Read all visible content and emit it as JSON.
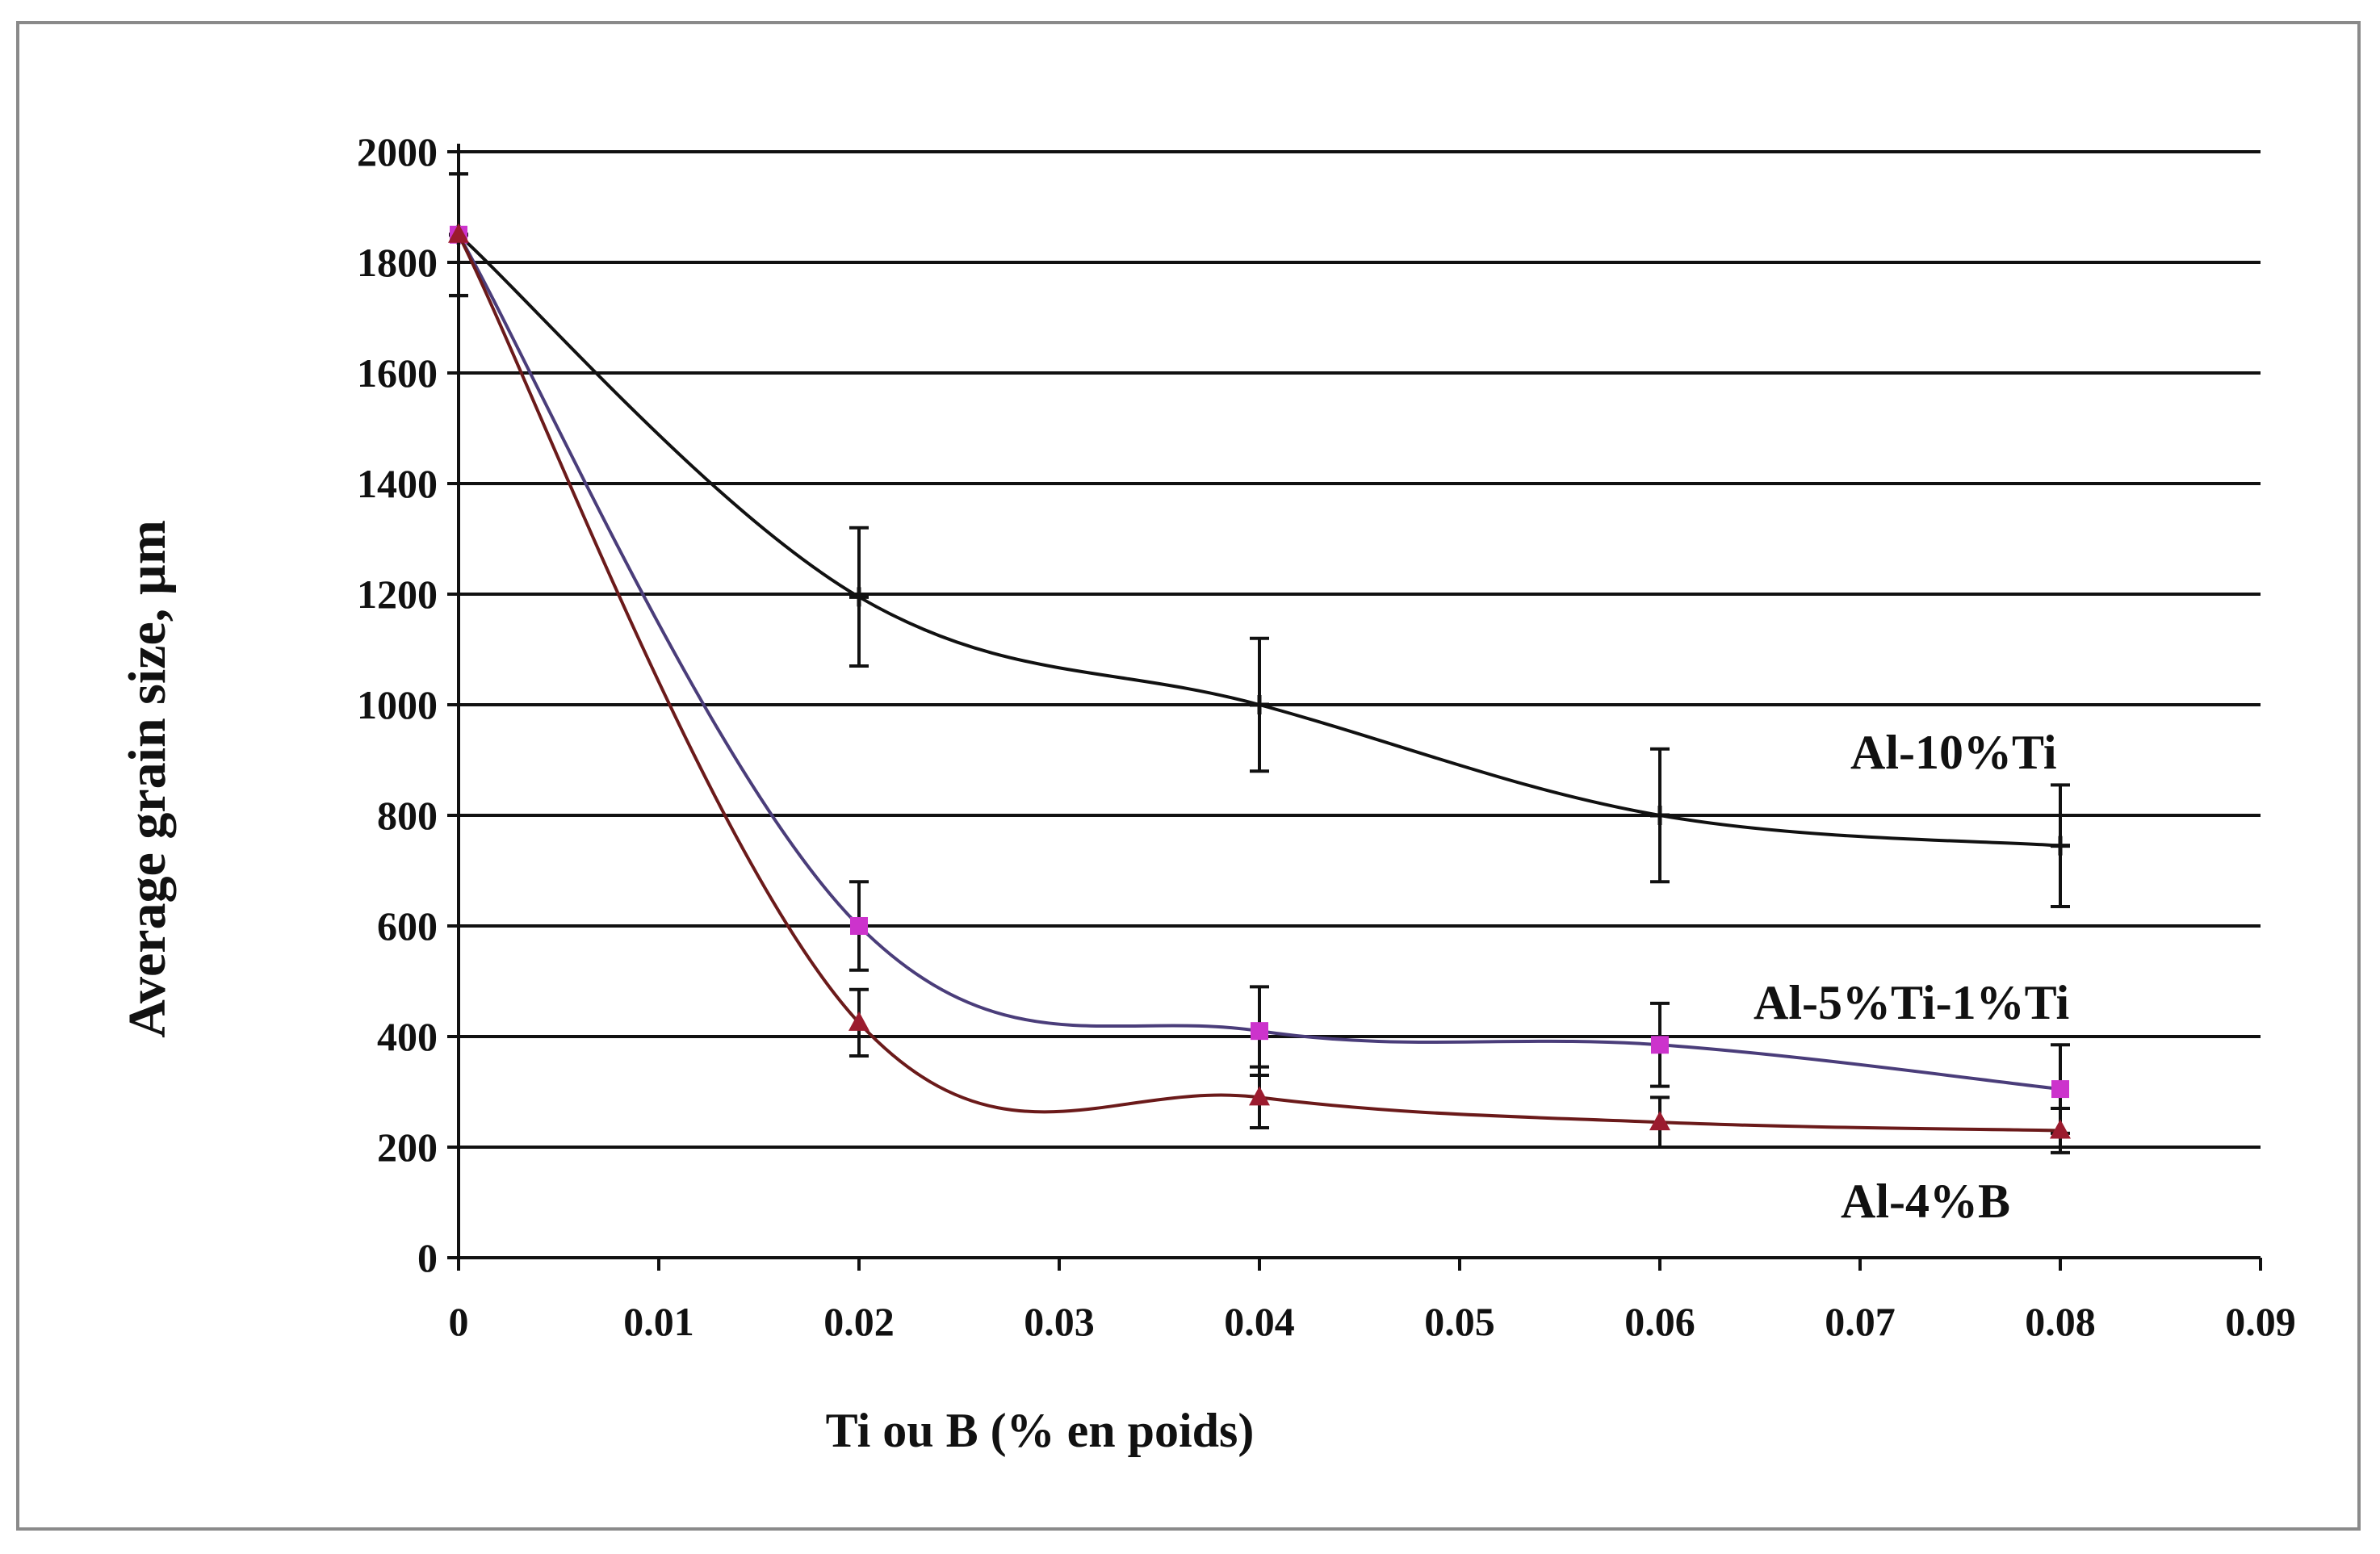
{
  "chart_data": {
    "type": "line",
    "title": "",
    "xlabel": "Ti ou B (% en poids)",
    "ylabel": "Average grain size,  µm",
    "xlim": [
      0,
      0.09
    ],
    "ylim": [
      0,
      2000
    ],
    "x_ticks": [
      "0",
      "0.01",
      "0.02",
      "0.03",
      "0.04",
      "0.05",
      "0.06",
      "0.07",
      "0.08",
      "0.09"
    ],
    "y_ticks": [
      "0",
      "200",
      "400",
      "600",
      "800",
      "1000",
      "1200",
      "1400",
      "1600",
      "1800",
      "2000"
    ],
    "grid": "horizontal",
    "series": [
      {
        "name": "Al-10%Ti",
        "color": "#111111",
        "marker_color": "#111111",
        "x": [
          0,
          0.02,
          0.04,
          0.06,
          0.08
        ],
        "y": [
          1850,
          1195,
          1000,
          800,
          745
        ],
        "error": [
          110,
          125,
          120,
          120,
          110
        ]
      },
      {
        "name": "Al-5%Ti-1%Ti",
        "color": "#4a3d7a",
        "marker_color": "#cc33cc",
        "x": [
          0,
          0.02,
          0.04,
          0.06,
          0.08
        ],
        "y": [
          1850,
          600,
          410,
          385,
          305
        ],
        "error": [
          110,
          80,
          80,
          75,
          80
        ]
      },
      {
        "name": "Al-4%B",
        "color": "#6b1a1a",
        "marker_color": "#9b1b2e",
        "x": [
          0,
          0.02,
          0.04,
          0.06,
          0.08
        ],
        "y": [
          1850,
          425,
          290,
          245,
          230
        ],
        "error": [
          110,
          60,
          55,
          45,
          40
        ]
      }
    ]
  }
}
